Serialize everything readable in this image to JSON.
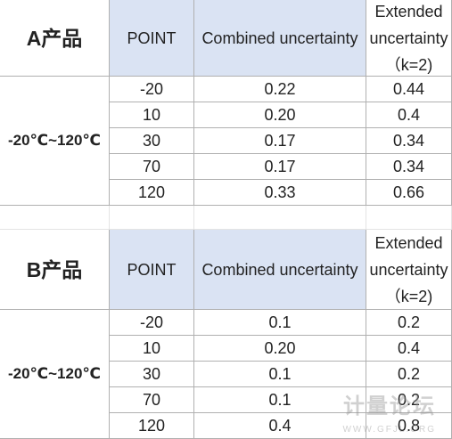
{
  "tables": [
    {
      "title": "A产品",
      "headers": [
        "POINT",
        "Combined uncertainty",
        "Extended uncertainty（k=2)"
      ],
      "range": "-20℃~120℃",
      "rows": [
        [
          "-20",
          "0.22",
          "0.44"
        ],
        [
          "10",
          "0.20",
          "0.4"
        ],
        [
          "30",
          "0.17",
          "0.34"
        ],
        [
          "70",
          "0.17",
          "0.34"
        ],
        [
          "120",
          "0.33",
          "0.66"
        ]
      ]
    },
    {
      "title": "B产品",
      "headers": [
        "POINT",
        "Combined uncertainty",
        "Extended uncertainty（k=2)"
      ],
      "range": "-20℃~120℃",
      "rows": [
        [
          "-20",
          "0.1",
          "0.2"
        ],
        [
          "10",
          "0.20",
          "0.4"
        ],
        [
          "30",
          "0.1",
          "0.2"
        ],
        [
          "70",
          "0.1",
          "0.2"
        ],
        [
          "120",
          "0.4",
          "0.8"
        ]
      ]
    }
  ],
  "watermark": {
    "text": "计量论坛",
    "url": "WWW.GFJL.ORG"
  }
}
